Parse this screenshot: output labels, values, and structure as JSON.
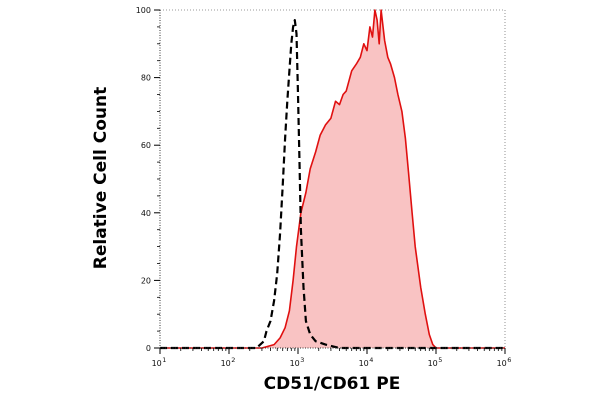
{
  "chart_data": {
    "type": "area",
    "title": "",
    "xlabel": "CD51/CD61 PE",
    "ylabel": "Relative Cell Count",
    "x_scale": "log",
    "xlim": [
      10,
      1000000
    ],
    "ylim": [
      0,
      100
    ],
    "grid": false,
    "legend": "none",
    "x_ticks": [
      {
        "value": 10,
        "label": "10",
        "exp": "1"
      },
      {
        "value": 100,
        "label": "10",
        "exp": "2"
      },
      {
        "value": 1000,
        "label": "10",
        "exp": "3"
      },
      {
        "value": 10000,
        "label": "10",
        "exp": "4"
      },
      {
        "value": 100000,
        "label": "10",
        "exp": "5"
      },
      {
        "value": 1000000,
        "label": "10",
        "exp": "6"
      }
    ],
    "y_ticks": [
      {
        "value": 0,
        "label": "0"
      },
      {
        "value": 20,
        "label": "20"
      },
      {
        "value": 40,
        "label": "40"
      },
      {
        "value": 60,
        "label": "60"
      },
      {
        "value": 80,
        "label": "80"
      },
      {
        "value": 100,
        "label": "100"
      }
    ],
    "series": [
      {
        "style": "dashed",
        "color": "#000000",
        "fill": "none",
        "x": [
          10,
          100,
          250,
          320,
          350,
          400,
          450,
          500,
          550,
          600,
          650,
          700,
          750,
          800,
          850,
          900,
          950,
          1000,
          1050,
          1100,
          1200,
          1300,
          1500,
          1800,
          2500,
          4000,
          10000,
          1000000
        ],
        "y": [
          0,
          0,
          0,
          2,
          5,
          8,
          14,
          22,
          34,
          48,
          62,
          73,
          82,
          90,
          95,
          97,
          93,
          75,
          55,
          35,
          18,
          8,
          4,
          2,
          1,
          0,
          0,
          0
        ]
      },
      {
        "style": "solid",
        "color": "#e01010",
        "fill": "#f9c3c3",
        "x": [
          10,
          100,
          300,
          450,
          550,
          650,
          750,
          850,
          950,
          1100,
          1300,
          1500,
          1800,
          2100,
          2500,
          3000,
          3500,
          4000,
          4500,
          5000,
          6000,
          7000,
          8000,
          9000,
          10000,
          11000,
          12000,
          13000,
          14000,
          15000,
          16000,
          18000,
          20000,
          22000,
          25000,
          28000,
          32000,
          36000,
          40000,
          45000,
          50000,
          60000,
          70000,
          80000,
          90000,
          100000,
          120000,
          150000,
          300000,
          1000000
        ],
        "y": [
          0,
          0,
          0,
          1,
          3,
          6,
          11,
          20,
          30,
          40,
          46,
          53,
          58,
          63,
          66,
          68,
          73,
          72,
          75,
          76,
          82,
          84,
          86,
          90,
          88,
          95,
          92,
          100,
          97,
          90,
          100,
          91,
          86,
          84,
          80,
          75,
          70,
          62,
          52,
          40,
          30,
          18,
          10,
          4,
          1,
          0,
          0,
          0,
          0,
          0
        ]
      }
    ]
  }
}
